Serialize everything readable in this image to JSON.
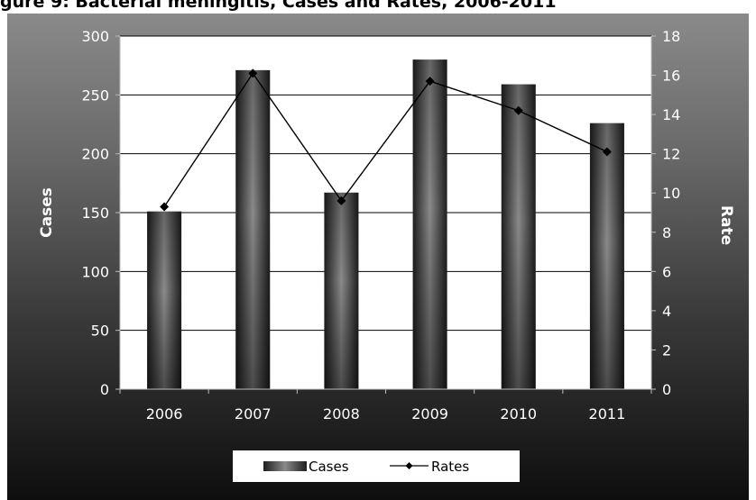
{
  "title_fragment": "gure 9: Bacterial meningitis, Cases and Rates, 2006-2011",
  "chart_data": {
    "type": "bar",
    "categories": [
      "2006",
      "2007",
      "2008",
      "2009",
      "2010",
      "2011"
    ],
    "series": [
      {
        "name": "Cases",
        "type": "bar",
        "axis": "left",
        "values": [
          151,
          271,
          167,
          280,
          259,
          226
        ]
      },
      {
        "name": "Rates",
        "type": "line",
        "axis": "right",
        "values": [
          9.3,
          16.1,
          9.6,
          15.7,
          14.2,
          12.1
        ]
      }
    ],
    "ylabel": "Cases",
    "y2label": "Rate",
    "ylim": [
      0,
      300
    ],
    "y2lim": [
      0,
      18
    ],
    "yticks": [
      0,
      50,
      100,
      150,
      200,
      250,
      300
    ],
    "y2ticks": [
      0,
      2,
      4,
      6,
      8,
      10,
      12,
      14,
      16,
      18
    ],
    "grid": true,
    "legend": "bottom",
    "colors": {
      "bar_edge": "#222222",
      "bar_mid": "#8a8a8a",
      "line": "#000000",
      "grid": "#000000"
    }
  }
}
